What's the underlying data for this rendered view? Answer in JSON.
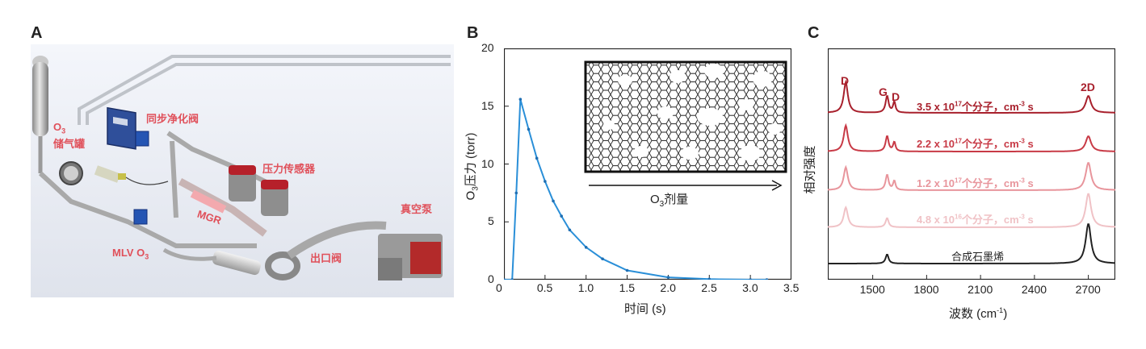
{
  "panels": {
    "a": {
      "letter": "A",
      "labels": {
        "o3_tank": "O",
        "o3_tank_sub": "3",
        "o3_tank_rest": "储气罐",
        "sync_valve": "同步净化阀",
        "pressure_sensor": "压力传感器",
        "mgr": "MGR",
        "mlv": "MLV O",
        "mlv_sub": "3",
        "outlet_valve": "出口阀",
        "vacuum_pump": "真空泵"
      }
    },
    "b": {
      "letter": "B",
      "ylabel_prefix": "O",
      "ylabel_sub": "3",
      "ylabel_rest": "压力 (torr)",
      "xlabel": "时间 (s)",
      "inset_label_prefix": "O",
      "inset_label_sub": "3",
      "inset_label_rest": "剂量",
      "x_ticks": [
        "0",
        "0.5",
        "1.0",
        "1.5",
        "2.0",
        "2.5",
        "3.0",
        "3.5"
      ],
      "y_ticks": [
        "0",
        "5",
        "10",
        "15",
        "20"
      ]
    },
    "c": {
      "letter": "C",
      "ylabel": "相对强度",
      "xlabel": "波数 (cm",
      "xlabel_sup": "-1",
      "xlabel_end": ")",
      "x_ticks": [
        "1500",
        "1800",
        "2100",
        "2400",
        "2700"
      ],
      "peak_labels": {
        "d": "D",
        "g": "G",
        "d2": "D",
        "two_d": "2D"
      },
      "spectra": [
        {
          "pre": "3.5 x 10",
          "sup": "17",
          "mid": "个分子，cm",
          "sup2": "-3",
          "post": " s",
          "color": "#a8202c"
        },
        {
          "pre": "2.2 x 10",
          "sup": "17",
          "mid": "个分子，cm",
          "sup2": "-3",
          "post": " s",
          "color": "#c83a46"
        },
        {
          "pre": "1.2 x 10",
          "sup": "17",
          "mid": "个分子，cm",
          "sup2": "-3",
          "post": " s",
          "color": "#e8959c"
        },
        {
          "pre": "4.8 x 10",
          "sup": "16",
          "mid": "个分子，cm",
          "sup2": "-3",
          "post": " s",
          "color": "#f0c2c6"
        },
        {
          "label": "合成石墨烯",
          "color": "#222222"
        }
      ]
    }
  },
  "chart_data": [
    {
      "type": "line",
      "x": [
        0.0,
        0.1,
        0.15,
        0.2,
        0.3,
        0.4,
        0.5,
        0.6,
        0.7,
        0.8,
        1.0,
        1.2,
        1.5,
        2.0,
        2.5,
        3.0,
        3.2
      ],
      "series": [
        {
          "values": [
            0.0,
            0.0,
            7.5,
            15.6,
            13.0,
            10.5,
            8.5,
            6.8,
            5.5,
            4.3,
            2.8,
            1.8,
            0.8,
            0.2,
            0.05,
            0.0,
            0.0
          ]
        }
      ],
      "xlabel": "时间 (s)",
      "ylabel": "O3压力 (torr)",
      "xlim": [
        0,
        3.5
      ],
      "ylim": [
        0,
        20
      ],
      "color": "#2a8fd8"
    },
    {
      "type": "line",
      "xlabel": "波数 (cm-1)",
      "ylabel": "相对强度",
      "xlim": [
        1250,
        2850
      ],
      "peaks": {
        "D": 1350,
        "G": 1580,
        "D_prime": 1620,
        "2D": 2700
      },
      "series": [
        {
          "name": "3.5 x 10^17 个分子，cm^-3 s",
          "peak_heights": {
            "D": 1.0,
            "G": 0.55,
            "D_prime": 0.35,
            "2D": 0.55
          }
        },
        {
          "name": "2.2 x 10^17 个分子，cm^-3 s",
          "peak_heights": {
            "D": 0.85,
            "G": 0.5,
            "D_prime": 0.3,
            "2D": 0.5
          }
        },
        {
          "name": "1.2 x 10^17 个分子，cm^-3 s",
          "peak_heights": {
            "D": 0.75,
            "G": 0.5,
            "D_prime": 0.3,
            "2D": 0.9
          }
        },
        {
          "name": "4.8 x 10^16 个分子，cm^-3 s",
          "peak_heights": {
            "D": 0.65,
            "G": 0.3,
            "D_prime": 0.0,
            "2D": 1.1
          }
        },
        {
          "name": "合成石墨烯",
          "peak_heights": {
            "D": 0.0,
            "G": 0.3,
            "D_prime": 0.0,
            "2D": 1.3
          }
        }
      ]
    }
  ]
}
